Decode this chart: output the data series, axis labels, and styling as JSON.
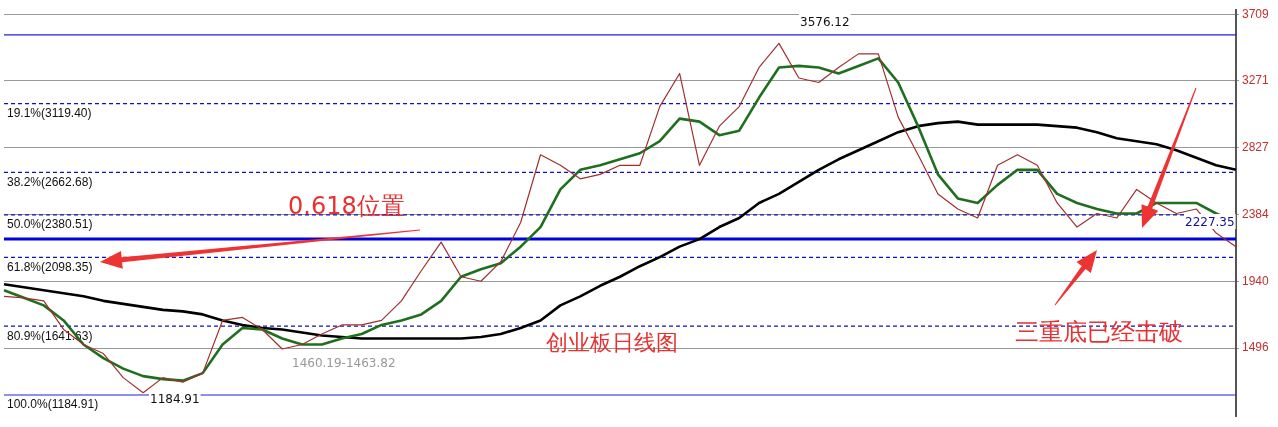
{
  "chart_data": {
    "type": "line",
    "categories": [
      null,
      null,
      null,
      null,
      null,
      null,
      null,
      null,
      null,
      null,
      null,
      null,
      null,
      null,
      null,
      null,
      null,
      null,
      null,
      null,
      null,
      null,
      null,
      null,
      null,
      null,
      null,
      null,
      null,
      null,
      null,
      null,
      null,
      null,
      null,
      null,
      null,
      null,
      null,
      null,
      null,
      null,
      null,
      null,
      null,
      null,
      null,
      null,
      null,
      null,
      null,
      null,
      null,
      null,
      null,
      null,
      null,
      null,
      null,
      null,
      null,
      null,
      null
    ],
    "series": [
      {
        "color": "#a03030",
        "values": [
          1840,
          1830,
          1810,
          1620,
          1520,
          1460,
          1300,
          1200,
          1300,
          1270,
          1330,
          1680,
          1700,
          1620,
          1490,
          1520,
          1590,
          1650,
          1650,
          1680,
          1810,
          2010,
          2200,
          1970,
          1940,
          2070,
          2330,
          2780,
          2710,
          2620,
          2650,
          2710,
          2710,
          3100,
          3320,
          2710,
          2970,
          3100,
          3360,
          3520,
          3290,
          3260,
          3360,
          3450,
          3450,
          3030,
          2780,
          2520,
          2420,
          2360,
          2710,
          2780,
          2710,
          2460,
          2300,
          2390,
          2360,
          2550,
          2460,
          2390,
          2420,
          2260,
          2170
        ]
      },
      {
        "color": "#1f6f1f",
        "values": [
          1880,
          1830,
          1780,
          1680,
          1520,
          1430,
          1360,
          1310,
          1290,
          1280,
          1330,
          1520,
          1630,
          1620,
          1560,
          1520,
          1520,
          1560,
          1590,
          1650,
          1680,
          1720,
          1810,
          1970,
          2020,
          2060,
          2170,
          2300,
          2550,
          2680,
          2710,
          2750,
          2790,
          2870,
          3020,
          3000,
          2910,
          2940,
          3160,
          3360,
          3370,
          3360,
          3320,
          3370,
          3420,
          3260,
          2970,
          2650,
          2490,
          2460,
          2580,
          2680,
          2680,
          2520,
          2460,
          2420,
          2390,
          2390,
          2460,
          2460,
          2460,
          2390,
          2330
        ]
      },
      {
        "color": "#000000",
        "values": [
          1920,
          1900,
          1880,
          1860,
          1840,
          1810,
          1790,
          1770,
          1750,
          1740,
          1720,
          1680,
          1650,
          1630,
          1620,
          1600,
          1580,
          1570,
          1560,
          1560,
          1560,
          1560,
          1560,
          1560,
          1570,
          1590,
          1630,
          1680,
          1780,
          1840,
          1910,
          1970,
          2040,
          2100,
          2170,
          2220,
          2300,
          2360,
          2460,
          2520,
          2600,
          2680,
          2750,
          2810,
          2870,
          2930,
          2970,
          2990,
          3000,
          2980,
          2980,
          2980,
          2980,
          2970,
          2960,
          2930,
          2890,
          2870,
          2850,
          2810,
          2760,
          2710,
          2680
        ]
      }
    ],
    "ylim": [
      1040,
      3740
    ],
    "yticks": [
      1496,
      1940,
      2384,
      2827,
      3271,
      3709
    ],
    "grid": "y",
    "legend": false,
    "tick_labels": "y",
    "ref_lines": [
      {
        "axis": "y",
        "value": 3576.12,
        "label": null,
        "color": "#2020e0",
        "line_style": "solid"
      },
      {
        "axis": "y",
        "value": 3119.4,
        "label": "19.1%(3119.40)",
        "color": "#1010c0",
        "line_style": "dashed"
      },
      {
        "axis": "y",
        "value": 2662.68,
        "label": "38.2%(2662.68)",
        "color": "#1010c0",
        "line_style": "dashed"
      },
      {
        "axis": "y",
        "value": 2380.51,
        "label": "50.0%(2380.51)",
        "color": "#1010c0",
        "line_style": "dashed"
      },
      {
        "axis": "y",
        "value": 2220,
        "label": null,
        "color": "#0000e0",
        "line_style": "solid"
      },
      {
        "axis": "y",
        "value": 2098.35,
        "label": "61.8%(2098.35)",
        "color": "#1010c0",
        "line_style": "dashed"
      },
      {
        "axis": "y",
        "value": 1641.63,
        "label": "80.9%(1641.63)",
        "color": "#1010c0",
        "line_style": "dashed"
      },
      {
        "axis": "y",
        "value": 1184.91,
        "label": "100.0%(1184.91)",
        "color": "#2020e0",
        "line_style": "solid"
      }
    ],
    "annotations": [
      "0.618位置",
      "创业板日线图",
      "三重底已经击破",
      "3576.12",
      "1184.91",
      "1460.19-1463.82",
      "2227.35"
    ]
  }
}
